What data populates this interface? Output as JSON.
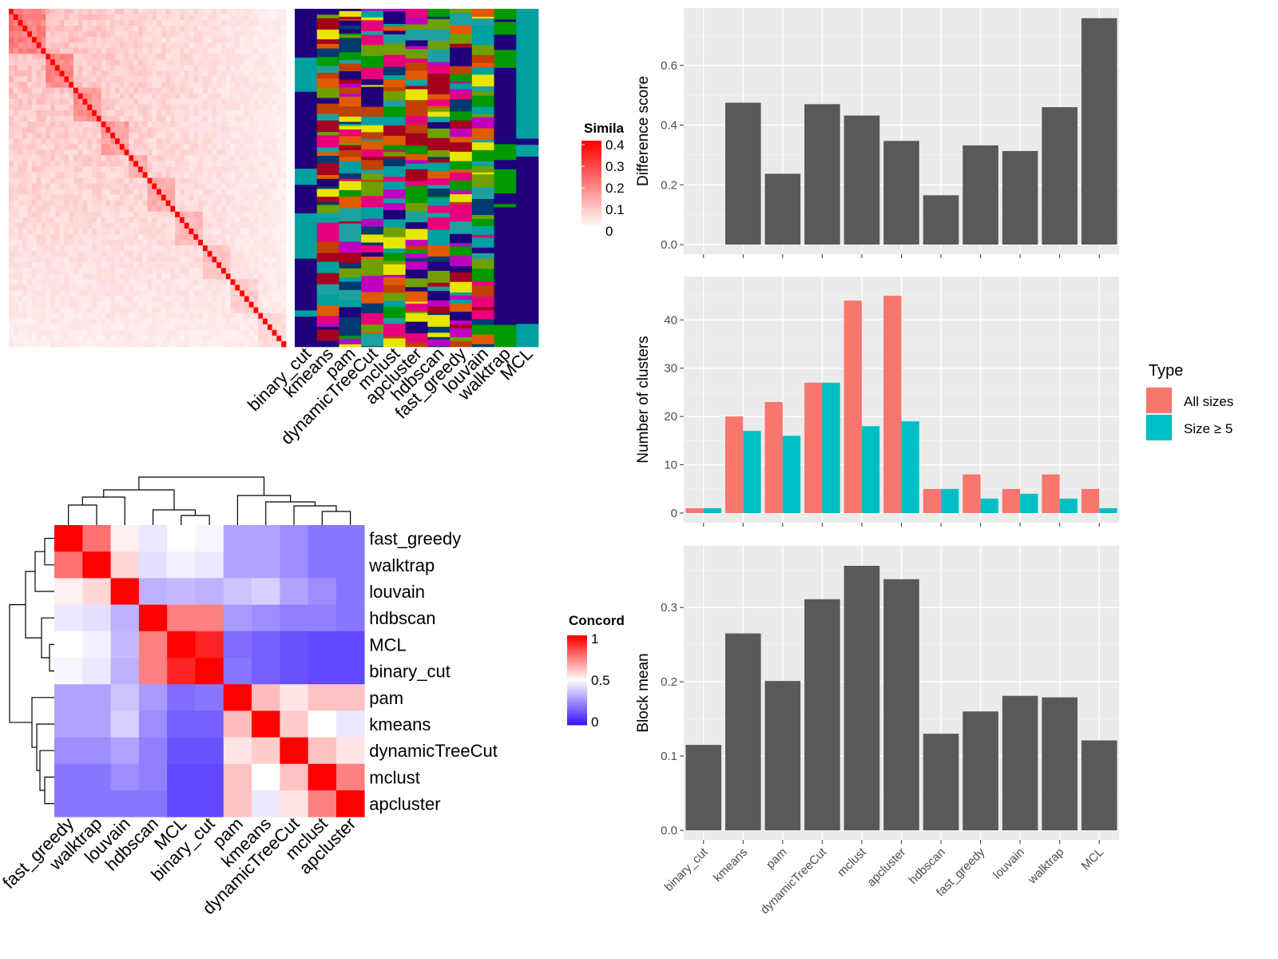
{
  "methods": [
    "binary_cut",
    "kmeans",
    "pam",
    "dynamicTreeCut",
    "mclust",
    "apcluster",
    "hdbscan",
    "fast_greedy",
    "louvain",
    "walktrap",
    "MCL"
  ],
  "similarity_panel": {
    "legend_title": "Simila",
    "legend_ticks": [
      "0.4",
      "0.3",
      "0.2",
      "0.1",
      "0"
    ],
    "class_colors": [
      "#1F007A",
      "#E8007A",
      "#009900",
      "#A6001F",
      "#00A0A0",
      "#C000C0",
      "#6FA000",
      "#E05A00",
      "#003A70",
      "#E6E600",
      "#1FA0A0",
      "#C04000"
    ]
  },
  "concordance_panel": {
    "legend_title": "Concord",
    "legend_ticks": [
      "1",
      "0.5",
      "0"
    ],
    "row_order": [
      "fast_greedy",
      "walktrap",
      "louvain",
      "hdbscan",
      "MCL",
      "binary_cut",
      "pam",
      "kmeans",
      "dynamicTreeCut",
      "mclust",
      "apcluster"
    ]
  },
  "type_legend": {
    "title": "Type",
    "items": [
      {
        "label": "All sizes",
        "color": "#F8766D"
      },
      {
        "label": "Size ≥ 5",
        "color": "#00BFC4"
      }
    ]
  },
  "chart_data": [
    {
      "type": "bar",
      "categories": [
        "binary_cut",
        "kmeans",
        "pam",
        "dynamicTreeCut",
        "mclust",
        "apcluster",
        "hdbscan",
        "fast_greedy",
        "louvain",
        "walktrap",
        "MCL"
      ],
      "values": [
        0,
        0.475,
        0.237,
        0.47,
        0.432,
        0.347,
        0.165,
        0.332,
        0.313,
        0.46,
        0.758
      ],
      "title": "",
      "xlabel": "",
      "ylabel": "Difference score",
      "ylim": [
        0,
        0.76
      ],
      "yticks": [
        "0.0",
        "0.2",
        "0.4",
        "0.6"
      ],
      "color": "#595959"
    },
    {
      "type": "bar",
      "categories": [
        "binary_cut",
        "kmeans",
        "pam",
        "dynamicTreeCut",
        "mclust",
        "apcluster",
        "hdbscan",
        "fast_greedy",
        "louvain",
        "walktrap",
        "MCL"
      ],
      "series": [
        {
          "name": "All sizes",
          "values": [
            1,
            20,
            23,
            27,
            44,
            45,
            5,
            8,
            5,
            8,
            5
          ]
        },
        {
          "name": "Size ≥ 5",
          "values": [
            1,
            17,
            16,
            27,
            18,
            19,
            5,
            3,
            4,
            3,
            1
          ]
        }
      ],
      "title": "",
      "xlabel": "",
      "ylabel": "Number of clusters",
      "ylim": [
        0,
        47
      ],
      "yticks": [
        "0",
        "10",
        "20",
        "30",
        "40"
      ]
    },
    {
      "type": "bar",
      "categories": [
        "binary_cut",
        "kmeans",
        "pam",
        "dynamicTreeCut",
        "mclust",
        "apcluster",
        "hdbscan",
        "fast_greedy",
        "louvain",
        "walktrap",
        "MCL"
      ],
      "values": [
        0.115,
        0.265,
        0.201,
        0.311,
        0.356,
        0.338,
        0.13,
        0.16,
        0.181,
        0.179,
        0.121
      ],
      "title": "",
      "xlabel": "",
      "ylabel": "Block mean",
      "ylim": [
        0,
        0.37
      ],
      "yticks": [
        "0.0",
        "0.1",
        "0.2",
        "0.3"
      ],
      "color": "#595959"
    },
    {
      "type": "heatmap",
      "title": "",
      "rows": [
        "fast_greedy",
        "walktrap",
        "louvain",
        "hdbscan",
        "MCL",
        "binary_cut",
        "pam",
        "kmeans",
        "dynamicTreeCut",
        "mclust",
        "apcluster"
      ],
      "columns": [
        "fast_greedy",
        "walktrap",
        "louvain",
        "hdbscan",
        "MCL",
        "binary_cut",
        "pam",
        "kmeans",
        "dynamicTreeCut",
        "mclust",
        "apcluster"
      ],
      "values": [
        [
          1.0,
          0.78,
          0.53,
          0.45,
          0.5,
          0.48,
          0.3,
          0.3,
          0.25,
          0.2,
          0.2
        ],
        [
          0.78,
          1.0,
          0.58,
          0.43,
          0.47,
          0.45,
          0.3,
          0.3,
          0.25,
          0.2,
          0.2
        ],
        [
          0.53,
          0.58,
          1.0,
          0.33,
          0.35,
          0.33,
          0.37,
          0.4,
          0.3,
          0.25,
          0.2
        ],
        [
          0.45,
          0.43,
          0.33,
          1.0,
          0.75,
          0.75,
          0.28,
          0.25,
          0.22,
          0.22,
          0.2
        ],
        [
          0.5,
          0.47,
          0.35,
          0.75,
          1.0,
          0.93,
          0.18,
          0.15,
          0.12,
          0.1,
          0.1
        ],
        [
          0.48,
          0.45,
          0.33,
          0.75,
          0.93,
          1.0,
          0.2,
          0.15,
          0.12,
          0.1,
          0.1
        ],
        [
          0.3,
          0.3,
          0.37,
          0.28,
          0.18,
          0.2,
          1.0,
          0.63,
          0.55,
          0.62,
          0.62
        ],
        [
          0.3,
          0.3,
          0.4,
          0.25,
          0.15,
          0.15,
          0.63,
          1.0,
          0.6,
          0.5,
          0.45
        ],
        [
          0.25,
          0.25,
          0.3,
          0.22,
          0.12,
          0.12,
          0.55,
          0.6,
          1.0,
          0.62,
          0.55
        ],
        [
          0.2,
          0.2,
          0.25,
          0.22,
          0.1,
          0.1,
          0.62,
          0.5,
          0.62,
          1.0,
          0.75
        ],
        [
          0.2,
          0.2,
          0.2,
          0.2,
          0.1,
          0.1,
          0.62,
          0.45,
          0.55,
          0.75,
          1.0
        ]
      ],
      "scale": [
        0,
        0.5,
        1
      ]
    }
  ]
}
